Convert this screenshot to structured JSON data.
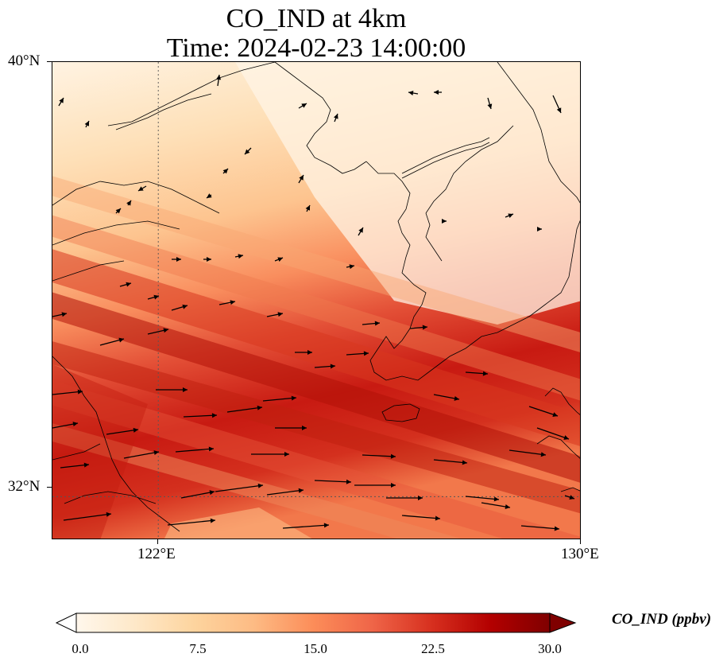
{
  "title": {
    "line1": "CO_IND at 4km",
    "line2": "Time: 2024-02-23 14:00:00"
  },
  "map": {
    "lat_range": [
      31.2,
      40.0
    ],
    "lon_range": [
      120.0,
      130.0
    ],
    "lat_ticks": [
      {
        "value": 40,
        "label": "40°N"
      },
      {
        "value": 32,
        "label": "32°N"
      }
    ],
    "lon_ticks": [
      {
        "value": 122,
        "label": "122°E"
      },
      {
        "value": 130,
        "label": "130°E"
      }
    ],
    "gridlines": "dotted at 122°E and 32°N",
    "field": "CO_IND concentration, highest in a diagonal band from SW to SE, low over Korea and the Yellow Sea north",
    "wind_vectors": "mostly westerly/west-south-westerly, strongest in the southern band"
  },
  "colorbar": {
    "title": "CO_IND (ppbv)",
    "min": 0.0,
    "max": 30.0,
    "ticks": [
      "0.0",
      "7.5",
      "15.0",
      "22.5",
      "30.0"
    ],
    "colormap": [
      "#fff7ec",
      "#fee8c8",
      "#fdd49e",
      "#fdbb84",
      "#fc8d59",
      "#ef6548",
      "#d7301f",
      "#b30000",
      "#7f0000"
    ],
    "extend": "both"
  }
}
